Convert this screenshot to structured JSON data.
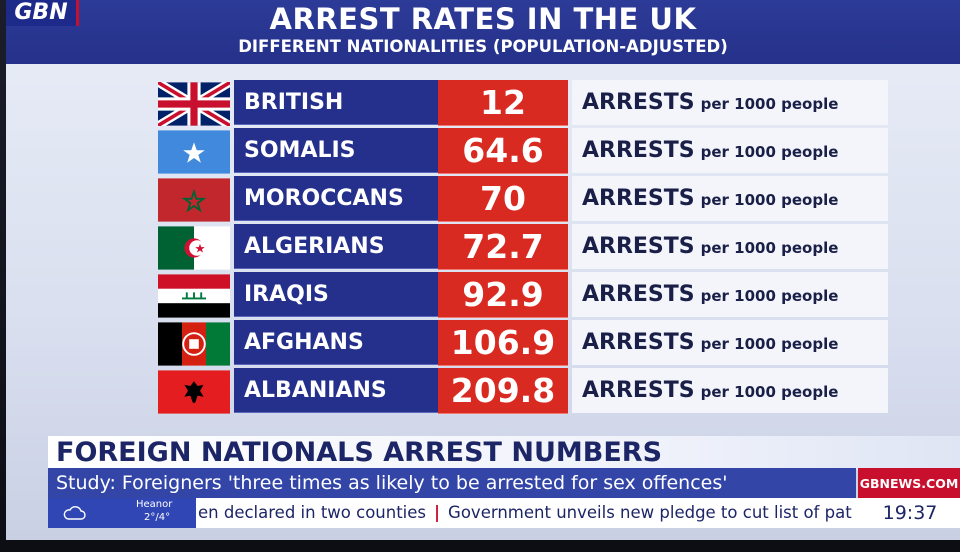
{
  "channel": {
    "logo_text": "GBN",
    "brand": "GBNEWS.COM"
  },
  "headline": "ARREST RATES IN THE UK",
  "subheadline": "DIFFERENT NATIONALITIES (POPULATION-ADJUSTED)",
  "unit_main": "ARRESTS",
  "unit_sub": "per 1000 people",
  "rows": [
    {
      "nationality": "BRITISH",
      "value": "12",
      "flag_icon": "uk-flag-icon"
    },
    {
      "nationality": "SOMALIS",
      "value": "64.6",
      "flag_icon": "somalia-flag-icon"
    },
    {
      "nationality": "MOROCCANS",
      "value": "70",
      "flag_icon": "morocco-flag-icon"
    },
    {
      "nationality": "ALGERIANS",
      "value": "72.7",
      "flag_icon": "algeria-flag-icon"
    },
    {
      "nationality": "IRAQIS",
      "value": "92.9",
      "flag_icon": "iraq-flag-icon"
    },
    {
      "nationality": "AFGHANS",
      "value": "106.9",
      "flag_icon": "afghanistan-flag-icon"
    },
    {
      "nationality": "ALBANIANS",
      "value": "209.8",
      "flag_icon": "albania-flag-icon"
    }
  ],
  "lower_third": {
    "title": "FOREIGN NATIONALS ARREST NUMBERS",
    "strap": "Study: Foreigners 'three times as likely to be arrested for sex offences'"
  },
  "weather": {
    "place": "Heanor",
    "temp": "2°/4°",
    "icon": "cloud-icon"
  },
  "ticker": {
    "item_1": "en declared in two counties",
    "separator": "|",
    "item_2": "Government unveils new pledge to cut list of pat"
  },
  "clock": "19:37",
  "colors": {
    "navy": "#24308c",
    "red": "#d92a22",
    "band_blue": "#2d3b98",
    "panel_white": "#f3f5fb"
  }
}
